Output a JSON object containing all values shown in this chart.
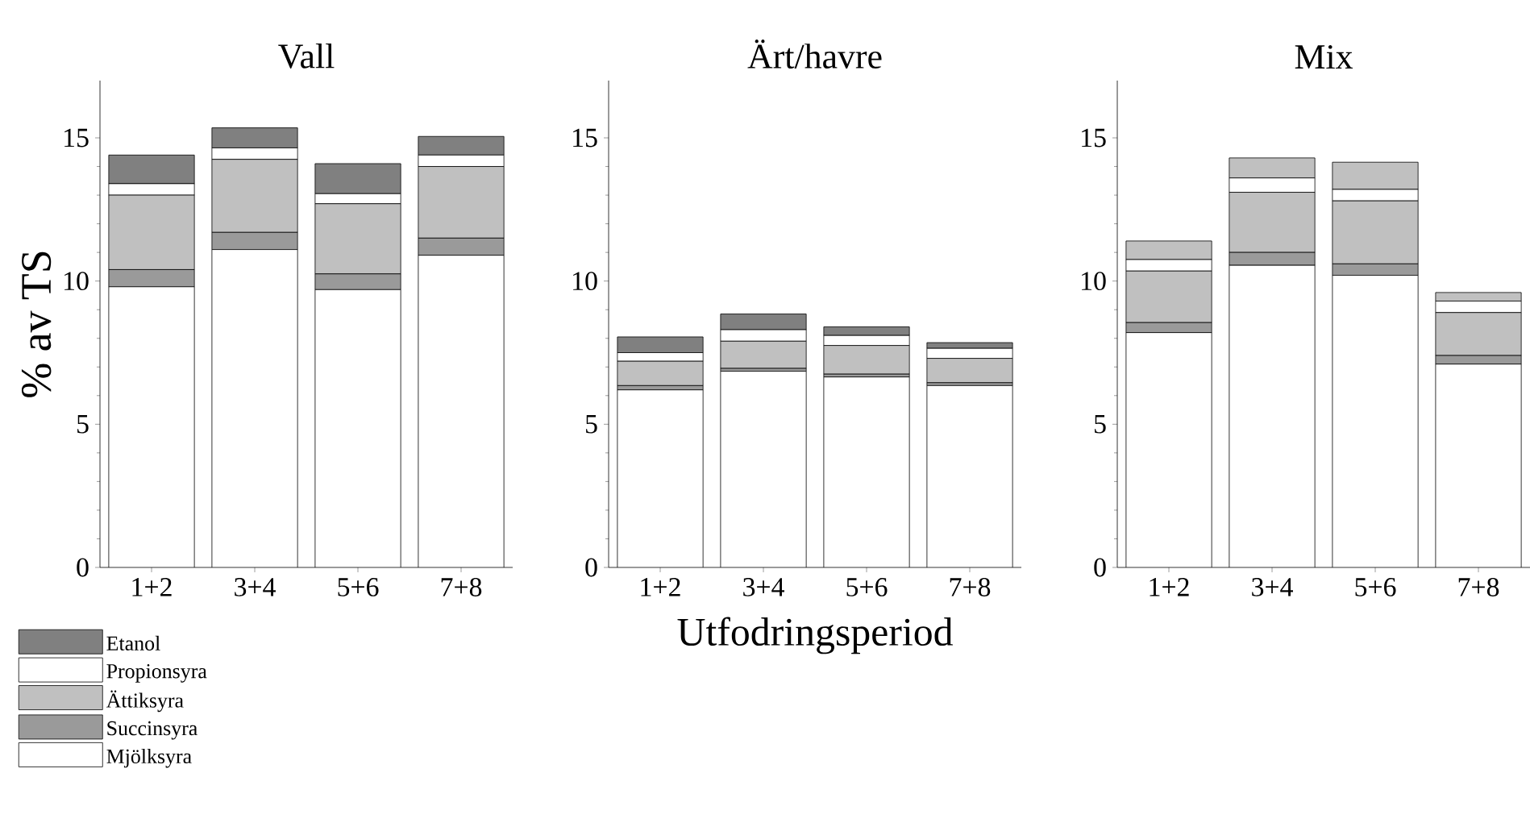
{
  "chart_data": [
    {
      "type": "bar",
      "stacked": true,
      "title": "Vall",
      "ylabel": "% av TS",
      "categories": [
        "1+2",
        "3+4",
        "5+6",
        "7+8"
      ],
      "ylim": [
        0,
        17
      ],
      "yticks": [
        0,
        5,
        10,
        15
      ],
      "legend": "bottom left",
      "series": [
        {
          "name": "Mjölksyra",
          "color": "#ffffff",
          "values": [
            9.8,
            11.1,
            9.7,
            10.9
          ]
        },
        {
          "name": "Succinsyra",
          "color": "#9a9a9a",
          "values": [
            0.6,
            0.6,
            0.55,
            0.6
          ]
        },
        {
          "name": "Ättiksyra",
          "color": "#c0c0c0",
          "values": [
            2.6,
            2.55,
            2.45,
            2.5
          ]
        },
        {
          "name": "Propionsyra",
          "color": "#ffffff",
          "values": [
            0.4,
            0.4,
            0.35,
            0.4
          ]
        },
        {
          "name": "Etanol",
          "color": "#808080",
          "values": [
            1.0,
            0.7,
            1.05,
            0.65
          ]
        }
      ]
    },
    {
      "type": "bar",
      "stacked": true,
      "title": "Ärt/havre",
      "xlabel": "Utfodringsperiod",
      "categories": [
        "1+2",
        "3+4",
        "5+6",
        "7+8"
      ],
      "ylim": [
        0,
        17
      ],
      "yticks": [
        0,
        5,
        10,
        15
      ],
      "series": [
        {
          "color": "#ffffff",
          "values": [
            6.2,
            6.85,
            6.65,
            6.35
          ]
        },
        {
          "color": "#9a9a9a",
          "values": [
            0.15,
            0.1,
            0.1,
            0.1
          ]
        },
        {
          "color": "#c0c0c0",
          "values": [
            0.85,
            0.95,
            1.0,
            0.85
          ]
        },
        {
          "color": "#ffffff",
          "values": [
            0.3,
            0.4,
            0.35,
            0.35
          ]
        },
        {
          "color": "#808080",
          "values": [
            0.55,
            0.55,
            0.3,
            0.2
          ]
        }
      ]
    },
    {
      "type": "bar",
      "stacked": true,
      "title": "Mix",
      "categories": [
        "1+2",
        "3+4",
        "5+6",
        "7+8"
      ],
      "ylim": [
        0,
        17
      ],
      "yticks": [
        0,
        5,
        10,
        15
      ],
      "series": [
        {
          "color": "#ffffff",
          "values": [
            8.2,
            10.55,
            10.2,
            7.1
          ]
        },
        {
          "color": "#9a9a9a",
          "values": [
            0.35,
            0.45,
            0.4,
            0.3
          ]
        },
        {
          "color": "#c0c0c0",
          "values": [
            1.8,
            2.1,
            2.2,
            1.5
          ]
        },
        {
          "color": "#ffffff",
          "values": [
            0.4,
            0.5,
            0.4,
            0.4
          ]
        },
        {
          "color": "#c0c0c0",
          "values": [
            0.65,
            0.7,
            0.95,
            0.3
          ]
        }
      ]
    }
  ]
}
